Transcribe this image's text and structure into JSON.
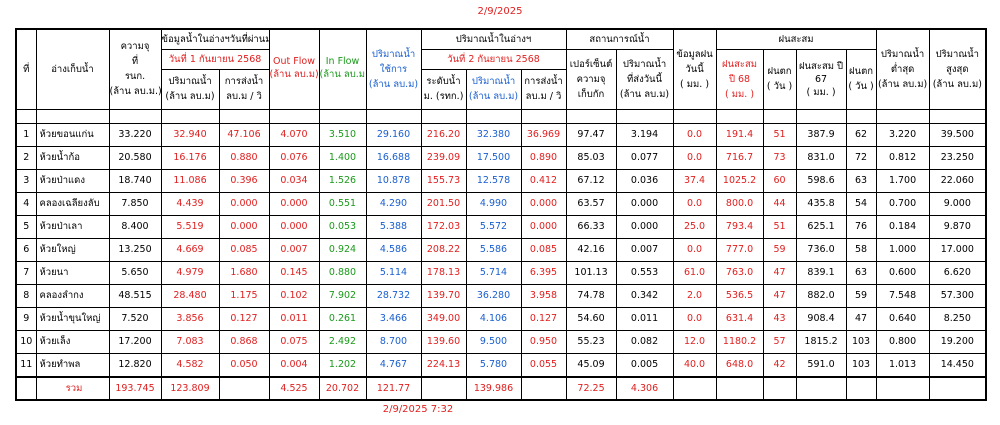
{
  "date": "2/9/2025",
  "timestamp": "2/9/2025 7:32",
  "headers": {
    "no": "ที่",
    "name": "อ่างเก็บน้ำ",
    "capacity": [
      "ความจุ",
      "ที่",
      "รนก.",
      "(ล้าน ลบ.ม.)"
    ],
    "prev": {
      "title": "ข้อมูลน้ำในอ่างฯวันที่ผ่านมา",
      "date": "วันที่ 1 กันยายน 2568",
      "volume": [
        "ปริมาณน้ำ",
        "(ล้าน ลบ.ม)"
      ],
      "release": [
        "การส่งน้ำ",
        "ลบ.ม / วิ"
      ]
    },
    "outflow": [
      "Out Flow",
      "(ล้าน ลบ.ม)"
    ],
    "inflow": [
      "In Flow",
      "(ล้าน ลบ.ม)"
    ],
    "usable": [
      "ปริมาณน้ำ",
      "ใช้การ",
      "(ล้าน ลบ.ม)"
    ],
    "current": {
      "title": "ปริมาณน้ำในอ่างฯ",
      "date": "วันที่ 2 กันยายน 2568",
      "level": [
        "ระดับน้ำ",
        "ม. (รทก.)"
      ],
      "volume": [
        "ปริมาณน้ำ",
        "(ล้าน ลบ.ม)"
      ],
      "release": [
        "การส่งน้ำ",
        "ลบ.ม / วิ"
      ]
    },
    "situation": {
      "title": "สถานการณ์น้ำ",
      "percent": [
        "เปอร์เซ็นต์",
        "ความจุ",
        "เก็บกัก"
      ],
      "sent": [
        "ปริมาณน้ำ",
        "ที่ส่งวันนี้",
        "(ล้าน ลบ.ม)"
      ]
    },
    "rain_today": [
      "ข้อมูลฝน",
      "วันนี้",
      "( มม. )"
    ],
    "accum": {
      "title": "ฝนสะสม",
      "y68": [
        "ฝนสะสม",
        "ปี 68",
        "( มม. )"
      ],
      "days68": [
        "ฝนตก",
        "( วัน )"
      ],
      "y67": [
        "ฝนสะสม ปี",
        "67",
        "( มม. )"
      ],
      "days67": [
        "ฝนตก",
        "( วัน )"
      ]
    },
    "min": [
      "ปริมาณน้ำ",
      "ต่ำสุด",
      "(ล้าน ลบ.ม)"
    ],
    "max": [
      "ปริมาณน้ำ",
      "สูงสุด",
      "(ล้าน ลบ.ม)"
    ]
  },
  "rows": [
    [
      "1",
      "ห้วยขอนแก่น",
      "33.220",
      "32.940",
      "47.106",
      "4.070",
      "3.510",
      "29.160",
      "216.20",
      "32.380",
      "36.969",
      "97.47",
      "3.194",
      "0.0",
      "191.4",
      "51",
      "387.9",
      "62",
      "3.220",
      "39.500"
    ],
    [
      "2",
      "ห้วยน้ำก้อ",
      "20.580",
      "16.176",
      "0.880",
      "0.076",
      "1.400",
      "16.688",
      "239.09",
      "17.500",
      "0.890",
      "85.03",
      "0.077",
      "0.0",
      "716.7",
      "73",
      "831.0",
      "72",
      "0.812",
      "23.250"
    ],
    [
      "3",
      "ห้วยป่าแดง",
      "18.740",
      "11.086",
      "0.396",
      "0.034",
      "1.526",
      "10.878",
      "155.73",
      "12.578",
      "0.412",
      "67.12",
      "0.036",
      "37.4",
      "1025.2",
      "60",
      "598.6",
      "63",
      "1.700",
      "22.060"
    ],
    [
      "4",
      "คลองเฉลียงลับ",
      "7.850",
      "4.439",
      "0.000",
      "0.000",
      "0.551",
      "4.290",
      "201.50",
      "4.990",
      "0.000",
      "63.57",
      "0.000",
      "0.0",
      "800.0",
      "44",
      "435.8",
      "54",
      "0.700",
      "9.000"
    ],
    [
      "5",
      "ห้วยป่าเลา",
      "8.400",
      "5.519",
      "0.000",
      "0.000",
      "0.053",
      "5.388",
      "172.03",
      "5.572",
      "0.000",
      "66.33",
      "0.000",
      "25.0",
      "793.4",
      "51",
      "625.1",
      "76",
      "0.184",
      "9.870"
    ],
    [
      "6",
      "ห้วยใหญ่",
      "13.250",
      "4.669",
      "0.085",
      "0.007",
      "0.924",
      "4.586",
      "208.22",
      "5.586",
      "0.085",
      "42.16",
      "0.007",
      "0.0",
      "777.0",
      "59",
      "736.0",
      "58",
      "1.000",
      "17.000"
    ],
    [
      "7",
      "ห้วยนา",
      "5.650",
      "4.979",
      "1.680",
      "0.145",
      "0.880",
      "5.114",
      "178.13",
      "5.714",
      "6.395",
      "101.13",
      "0.553",
      "61.0",
      "763.0",
      "47",
      "839.1",
      "63",
      "0.600",
      "6.620"
    ],
    [
      "8",
      "คลองลำกง",
      "48.515",
      "28.480",
      "1.175",
      "0.102",
      "7.902",
      "28.732",
      "139.70",
      "36.280",
      "3.958",
      "74.78",
      "0.342",
      "2.0",
      "536.5",
      "47",
      "882.0",
      "59",
      "7.548",
      "57.300"
    ],
    [
      "9",
      "ห้วยน้ำขุนใหญ่",
      "7.520",
      "3.856",
      "0.127",
      "0.011",
      "0.261",
      "3.466",
      "349.00",
      "4.106",
      "0.127",
      "54.60",
      "0.011",
      "0.0",
      "631.4",
      "43",
      "908.4",
      "47",
      "0.640",
      "8.250"
    ],
    [
      "10",
      "ห้วยเล็ง",
      "17.200",
      "7.083",
      "0.868",
      "0.075",
      "2.492",
      "8.700",
      "139.60",
      "9.500",
      "0.950",
      "55.23",
      "0.082",
      "12.0",
      "1180.2",
      "57",
      "1815.2",
      "103",
      "0.800",
      "19.200"
    ],
    [
      "11",
      "ห้วยทำพล",
      "12.820",
      "4.582",
      "0.050",
      "0.004",
      "1.202",
      "4.767",
      "224.13",
      "5.780",
      "0.055",
      "45.09",
      "0.005",
      "40.0",
      "648.0",
      "42",
      "591.0",
      "103",
      "1.013",
      "14.450"
    ]
  ],
  "total": {
    "label": "รวม",
    "capacity": "193.745",
    "volume_prev": "123.809",
    "outflow": "4.525",
    "inflow": "20.702",
    "usable": "121.77",
    "volume_now": "139.986",
    "percent": "72.25",
    "sent": "4.306"
  }
}
